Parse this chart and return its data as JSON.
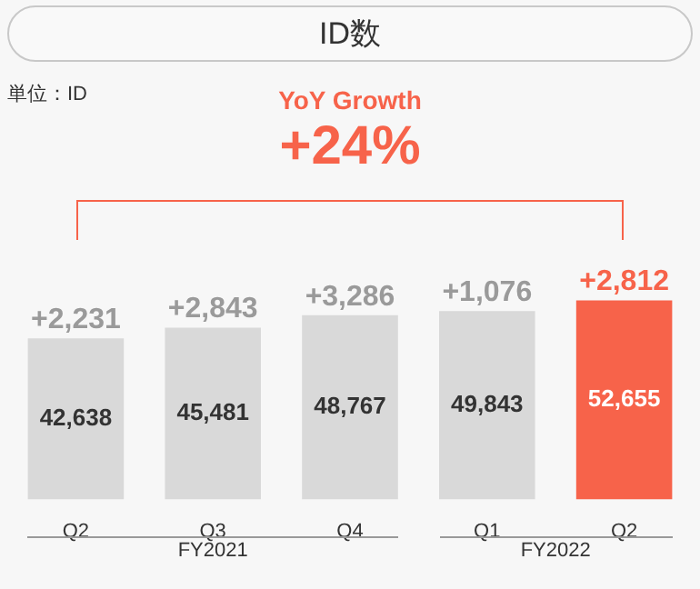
{
  "chart_data": {
    "type": "bar",
    "title": "ID数",
    "annotations": [
      "単位：ID",
      "YoY Growth",
      "+24%",
      "FY2021",
      "FY2022",
      "+2,231",
      "+2,843",
      "+3,286",
      "+1,076",
      "+2,812"
    ],
    "categories": [
      "Q2",
      "Q3",
      "Q4",
      "Q1",
      "Q2"
    ],
    "values": [
      42638,
      45481,
      48767,
      49843,
      52655
    ],
    "colors": [
      "#d9d9d9",
      "#d9d9d9",
      "#d9d9d9",
      "#d9d9d9",
      "#f7634a"
    ],
    "value_labels": [
      "42,638",
      "45,481",
      "48,767",
      "49,843",
      "52,655"
    ]
  }
}
